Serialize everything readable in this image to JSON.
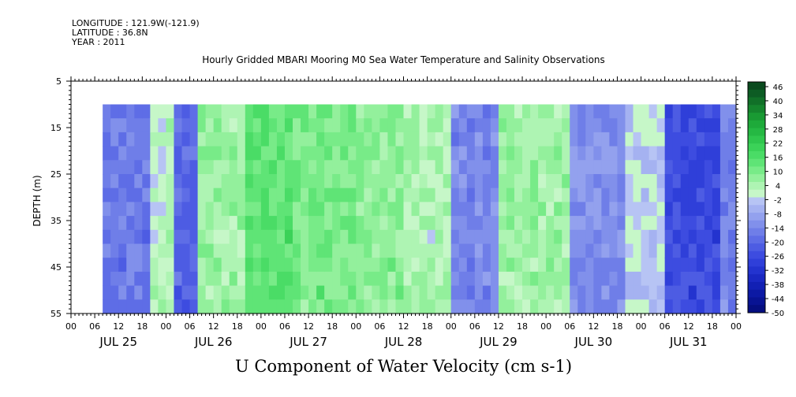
{
  "header": {
    "longitude": "LONGITUDE : 121.9W(-121.9)",
    "latitude": "LATITUDE : 36.8N",
    "year": "YEAR : 2011"
  },
  "chart_data": {
    "type": "heatmap",
    "title": "Hourly Gridded MBARI Mooring M0 Sea Water Temperature and Salinity Observations",
    "xlabel": "U Component of Water Velocity (cm s-1)",
    "ylabel": "DEPTH (m)",
    "y_ticks": [
      5,
      15,
      25,
      35,
      45,
      55
    ],
    "ylim": [
      55,
      5
    ],
    "y_data_range": [
      10,
      55
    ],
    "x_hour_ticks": [
      "00",
      "06",
      "12",
      "18",
      "00",
      "06",
      "12",
      "18",
      "00",
      "06",
      "12",
      "18",
      "00",
      "06",
      "12",
      "18",
      "00",
      "06",
      "12",
      "18",
      "00",
      "06",
      "12",
      "18",
      "00",
      "06",
      "12",
      "18",
      "00"
    ],
    "x_day_labels": [
      "JUL 25",
      "JUL 26",
      "JUL 27",
      "JUL 28",
      "JUL 29",
      "JUL 30",
      "JUL 31"
    ],
    "x_data_start_hour": 8,
    "x_total_hours": 168,
    "colorbar_levels": [
      48,
      46,
      44,
      42,
      40,
      38,
      36,
      34,
      32,
      30,
      28,
      26,
      24,
      22,
      20,
      18,
      16,
      14,
      12,
      10,
      8,
      6,
      4,
      2,
      0,
      -2,
      -4,
      -6,
      -8,
      -10,
      -12,
      -14,
      -16,
      -18,
      -20,
      -22,
      -24,
      -26,
      -28,
      -30,
      -32,
      -34,
      -36,
      -38,
      -40,
      -42,
      -44,
      -46,
      -48,
      -50
    ],
    "colorbar_labels": [
      "46",
      "40",
      "34",
      "28",
      "22",
      "16",
      "10",
      "4",
      "-2",
      "-8",
      "-14",
      "-20",
      "-26",
      "-32",
      "-38",
      "-44",
      "-50"
    ],
    "colorbar_colors": [
      "#0a4a1e",
      "#0d5c24",
      "#117028",
      "#15852d",
      "#199a33",
      "#1eaa3a",
      "#25b843",
      "#2fc64d",
      "#3bd258",
      "#4adc66",
      "#5fe476",
      "#78eb88",
      "#93f09c",
      "#aef4b3",
      "#c6f7c8",
      "#b7c4f4",
      "#a5b2f1",
      "#93a1ee",
      "#8190eb",
      "#6f7ee8",
      "#5e6de6",
      "#4d5ce3",
      "#3d4ce0",
      "#2f3fd9",
      "#2333cf",
      "#1a28c2",
      "#1220b4",
      "#0c19a4",
      "#081393",
      "#050e80"
    ],
    "series_summary": [
      {
        "hours_from_jul25_00": [
          8,
          20
        ],
        "u_cm_s": -16
      },
      {
        "hours_from_jul25_00": [
          20,
          26
        ],
        "u_cm_s": 2
      },
      {
        "hours_from_jul25_00": [
          26,
          32
        ],
        "u_cm_s": -20
      },
      {
        "hours_from_jul25_00": [
          32,
          44
        ],
        "u_cm_s": 6
      },
      {
        "hours_from_jul25_00": [
          44,
          56
        ],
        "u_cm_s": 14
      },
      {
        "hours_from_jul25_00": [
          56,
          72
        ],
        "u_cm_s": 10
      },
      {
        "hours_from_jul25_00": [
          72,
          84
        ],
        "u_cm_s": 8
      },
      {
        "hours_from_jul25_00": [
          84,
          96
        ],
        "u_cm_s": 4
      },
      {
        "hours_from_jul25_00": [
          96,
          108
        ],
        "u_cm_s": -14
      },
      {
        "hours_from_jul25_00": [
          108,
          126
        ],
        "u_cm_s": 6
      },
      {
        "hours_from_jul25_00": [
          126,
          140
        ],
        "u_cm_s": -12
      },
      {
        "hours_from_jul25_00": [
          140,
          150
        ],
        "u_cm_s": -2
      },
      {
        "hours_from_jul25_00": [
          150,
          164
        ],
        "u_cm_s": -26
      },
      {
        "hours_from_jul25_00": [
          164,
          168
        ],
        "u_cm_s": -14
      }
    ]
  }
}
